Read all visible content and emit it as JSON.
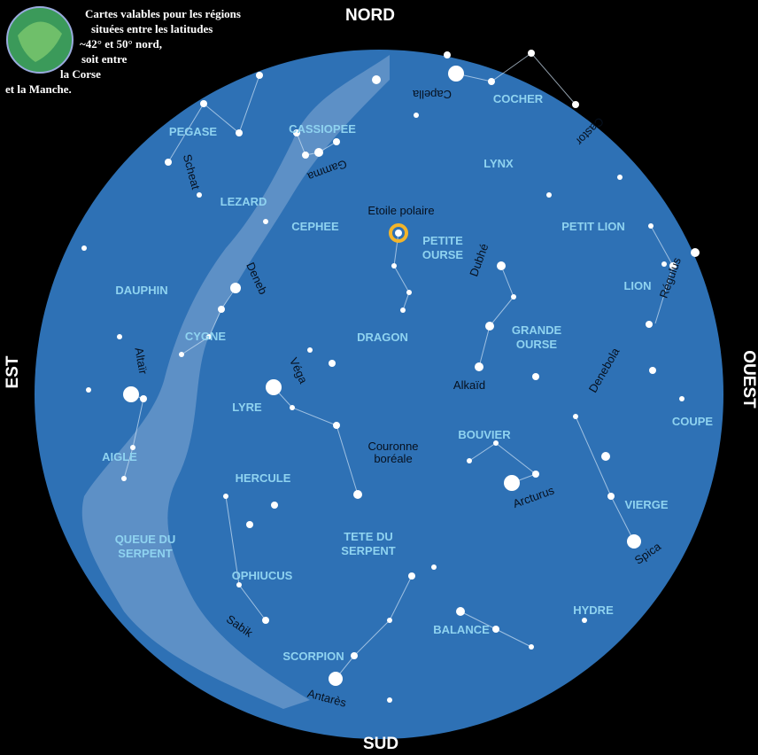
{
  "note": [
    "Cartes valables pour les régions",
    "situées entre les latitudes",
    "~42° et 50° nord,",
    "soit entre",
    "la Corse",
    "et la Manche."
  ],
  "directions": {
    "north": "NORD",
    "south": "SUD",
    "east": "EST",
    "west": "OUEST"
  },
  "constellations": [
    "PEGASE",
    "CASSIOPEE",
    "COCHER",
    "LYNX",
    "LEZARD",
    "CEPHEE",
    [
      "PETITE",
      "OURSE"
    ],
    "PETIT LION",
    "DAUPHIN",
    "LION",
    "CYGNE",
    "DRAGON",
    [
      "GRANDE",
      "OURSE"
    ],
    "LYRE",
    "BOUVIER",
    "COUPE",
    "AIGLE",
    "HERCULE",
    "VIERGE",
    [
      "QUEUE DU",
      "SERPENT"
    ],
    [
      "TETE DU",
      "SERPENT"
    ],
    "OPHIUCUS",
    "HYDRE",
    "BALANCE",
    "SCORPION"
  ],
  "stars": [
    "Capella",
    "Castor",
    "Scheat",
    "Gamma",
    "Etoile polaire",
    "Deneb",
    "Dubhé",
    "Régulus",
    "Altaïr",
    "Véga",
    "Denebola",
    "Alkaïd",
    [
      "Couronne",
      "boréale"
    ],
    "Arcturus",
    "Spica",
    "Sabik",
    "Antarès"
  ]
}
